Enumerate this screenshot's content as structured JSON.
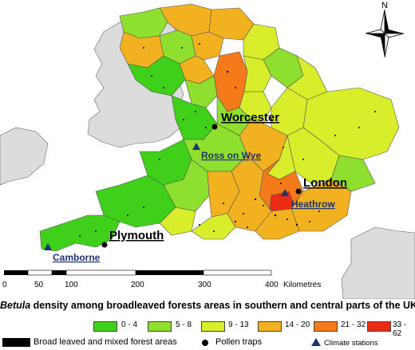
{
  "caption": {
    "italic": "Betula",
    "rest": " density among broadleaved forests areas in southern and central parts of the UK"
  },
  "cities": {
    "worcester": "Worcester",
    "ross": "Ross on Wye",
    "london": "London",
    "heathrow": "Heathrow",
    "plymouth": "Plymouth",
    "camborne": "Camborne"
  },
  "north_label": "N",
  "scale": {
    "ticks": [
      "0",
      "50",
      "100",
      "200",
      "300",
      "400"
    ],
    "unit": "Kilometres"
  },
  "legend": {
    "classes": [
      {
        "label": "0 - 4",
        "color": "#3fd01a"
      },
      {
        "label": "5 - 8",
        "color": "#8fe02e"
      },
      {
        "label": "9 - 13",
        "color": "#d9ee2a"
      },
      {
        "label": "14 - 20",
        "color": "#f2b21f"
      },
      {
        "label": "21 - 32",
        "color": "#f47a1a"
      },
      {
        "label": "33 - 62",
        "color": "#ea2c14"
      }
    ],
    "forest": "Broad leaved and mixed forest areas",
    "pollen": "Pollen traps",
    "climate": "Climate stations"
  },
  "colors": {
    "sea": "#ffffff",
    "neighbour_land": "#dcdcdc",
    "boundary": "#555555",
    "marker": "#000000",
    "climate_marker": "#1f3470"
  }
}
